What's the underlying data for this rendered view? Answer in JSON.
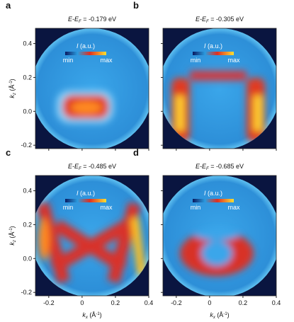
{
  "axes": {
    "xlim": [
      -0.28,
      0.4
    ],
    "ylim": [
      -0.22,
      0.49
    ],
    "xticks": [
      -0.2,
      0,
      0.2,
      0.4
    ],
    "yticks": [
      -0.2,
      {
        "value": 0,
        "label": "0.0"
      },
      0.2,
      0.4
    ],
    "xlabel": {
      "symbol": "k",
      "sub": "x",
      "unit_open": " (Å",
      "unit_exp": "-1",
      "unit_close": ")"
    },
    "ylabel": {
      "symbol": "k",
      "sub": "z",
      "unit_open": " (Å",
      "unit_exp": "-1",
      "unit_close": ")"
    }
  },
  "colorbar": {
    "symbol": "I",
    "unit": " (a.u.)",
    "min": "min",
    "max": "max"
  },
  "panels": [
    {
      "label": "a",
      "title_var": "E-E",
      "title_sub": "F",
      "title_value": " = -0.179 eV"
    },
    {
      "label": "b",
      "title_var": "E-E",
      "title_sub": "F",
      "title_value": " = -0.305 eV"
    },
    {
      "label": "c",
      "title_var": "E-E",
      "title_sub": "F",
      "title_value": " = -0.485 eV"
    },
    {
      "label": "d",
      "title_var": "E-E",
      "title_sub": "F",
      "title_value": " = -0.685 eV"
    }
  ]
}
